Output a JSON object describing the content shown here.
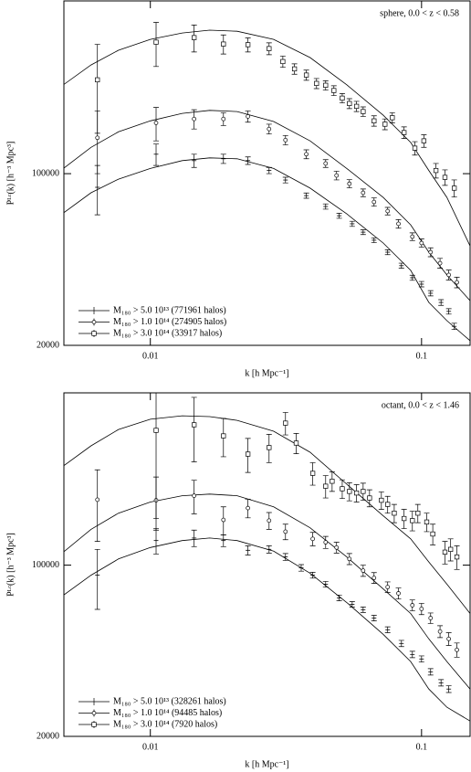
{
  "chart_data": [
    {
      "type": "scatter",
      "annotation": "sphere,  0.0 < z < 0.58",
      "x_label": "k [h Mpc⁻¹]",
      "y_label": "Pᴸᶜ(k) [h⁻³ Mpc³]",
      "log_x": true,
      "log_y": true,
      "xlim": [
        0.0048,
        0.151
      ],
      "ylim": [
        20000,
        505000
      ],
      "xticks": [
        0.01,
        0.1
      ],
      "yticks": [
        20000,
        100000
      ],
      "legend": "lower left",
      "series": [
        {
          "name": "M₁₈₀ > 5.0 10¹³ (771961 halos)",
          "marker": "plus",
          "color": "#000000",
          "x": [
            0.00638,
            0.0105,
            0.0145,
            0.0186,
            0.0229,
            0.0274,
            0.0315,
            0.0376,
            0.0443,
            0.0497,
            0.0555,
            0.0609,
            0.0668,
            0.075,
            0.0843,
            0.0925,
            0.1,
            0.108,
            0.118,
            0.126,
            0.132
          ],
          "values": [
            88000,
            120000,
            113000,
            115000,
            113000,
            103000,
            94200,
            81400,
            73500,
            67400,
            62500,
            57800,
            53600,
            47900,
            42200,
            37700,
            35500,
            32600,
            29900,
            27500,
            23900
          ],
          "errors": [
            20000,
            12000,
            7000,
            5000,
            4000,
            3000,
            2500,
            2000,
            1800,
            1600,
            1500,
            1300,
            1200,
            1100,
            1000,
            900,
            900,
            800,
            800,
            700,
            700
          ]
        },
        {
          "name": "M₁₈₀ > 1.0 10¹⁴ (274905 halos)",
          "marker": "circle",
          "color": "#000000",
          "x": [
            0.00638,
            0.0105,
            0.0145,
            0.0186,
            0.0229,
            0.0274,
            0.0315,
            0.0376,
            0.0443,
            0.0486,
            0.0542,
            0.0609,
            0.0668,
            0.075,
            0.0822,
            0.0925,
            0.1,
            0.108,
            0.117,
            0.126,
            0.135
          ],
          "values": [
            140000,
            161000,
            167000,
            167000,
            171000,
            152000,
            137000,
            120000,
            110000,
            98300,
            91000,
            83600,
            76700,
            70400,
            62500,
            55400,
            52200,
            47900,
            43200,
            38700,
            36100
          ],
          "errors": [
            40000,
            25000,
            15000,
            10000,
            9000,
            7000,
            6000,
            5000,
            4000,
            4000,
            3500,
            3000,
            3000,
            2500,
            2500,
            2000,
            2000,
            2000,
            2000,
            1800,
            1800
          ]
        },
        {
          "name": "M₁₈₀ > 3.0 10¹⁴ (33917 halos)",
          "marker": "square",
          "color": "#000000",
          "x": [
            0.00638,
            0.0105,
            0.0145,
            0.0186,
            0.0229,
            0.0274,
            0.0308,
            0.034,
            0.0376,
            0.041,
            0.0443,
            0.0475,
            0.051,
            0.0542,
            0.0576,
            0.0609,
            0.0668,
            0.0733,
            0.078,
            0.0862,
            0.0945,
            0.102,
            0.113,
            0.122,
            0.132
          ],
          "values": [
            241000,
            343000,
            358000,
            337000,
            335000,
            323000,
            286000,
            267000,
            252000,
            233000,
            229000,
            218000,
            203000,
            193000,
            188000,
            179000,
            164000,
            159000,
            169000,
            147000,
            127000,
            136000,
            103000,
            96600,
            87300
          ],
          "errors": [
            95000,
            70000,
            45000,
            30000,
            22000,
            18000,
            15000,
            13000,
            12000,
            11000,
            10000,
            10000,
            9000,
            9000,
            9000,
            8000,
            8000,
            8000,
            8000,
            8000,
            8000,
            8000,
            7000,
            7000,
            7000
          ]
        }
      ],
      "curve_x": [
        0.00478,
        0.00604,
        0.00763,
        0.01,
        0.0131,
        0.01655,
        0.0209,
        0.0285,
        0.0388,
        0.053,
        0.0722,
        0.0912,
        0.1064,
        0.124,
        0.151
      ],
      "curves": [
        {
          "values": [
            69200,
            83600,
            95000,
            105000,
            113000,
            116000,
            115000,
            105000,
            87300,
            68600,
            52200,
            40400,
            29900,
            25200,
            20900
          ]
        },
        {
          "values": [
            105000,
            128000,
            148000,
            164000,
            176000,
            181000,
            179000,
            163000,
            136000,
            105000,
            80000,
            61900,
            47900,
            38700,
            30400
          ]
        },
        {
          "values": [
            230000,
            277000,
            318000,
            352000,
            374000,
            384000,
            380000,
            352000,
            297000,
            230000,
            173000,
            134000,
            103000,
            80000,
            50800
          ]
        }
      ]
    },
    {
      "type": "scatter",
      "annotation": "octant,  0.0 < z < 1.46",
      "x_label": "k [h Mpc⁻¹]",
      "y_label": "Pᴸᶜ(k) [h⁻³ Mpc³]",
      "log_x": true,
      "log_y": true,
      "xlim": [
        0.0048,
        0.151
      ],
      "ylim": [
        20000,
        505000
      ],
      "xticks": [
        0.01,
        0.1
      ],
      "yticks": [
        20000,
        100000
      ],
      "legend": "lower left",
      "series": [
        {
          "name": "M₁₈₀ > 5.0 10¹³ (328261 halos)",
          "marker": "plus",
          "color": "#000000",
          "x": [
            0.00638,
            0.0105,
            0.0145,
            0.0186,
            0.0229,
            0.0274,
            0.0315,
            0.036,
            0.0397,
            0.0443,
            0.0497,
            0.0555,
            0.0609,
            0.0668,
            0.075,
            0.0843,
            0.0925,
            0.1,
            0.108,
            0.118,
            0.126
          ],
          "values": [
            91000,
            126000,
            129000,
            126000,
            115000,
            116000,
            108000,
            97500,
            91000,
            83600,
            73500,
            69200,
            65800,
            60800,
            54500,
            47900,
            43200,
            41400,
            36700,
            33100,
            31200
          ],
          "errors": [
            25000,
            15000,
            10000,
            7000,
            5000,
            4000,
            3500,
            3000,
            2500,
            2200,
            2000,
            1800,
            1700,
            1600,
            1500,
            1400,
            1300,
            1200,
            1100,
            1000,
            1000
          ]
        },
        {
          "name": "M₁₈₀ > 1.0 10¹⁴ (94485 halos)",
          "marker": "circle",
          "color": "#000000",
          "x": [
            0.00638,
            0.0105,
            0.0145,
            0.0186,
            0.0229,
            0.0274,
            0.0315,
            0.0397,
            0.0443,
            0.0486,
            0.0542,
            0.0609,
            0.0668,
            0.075,
            0.0822,
            0.0925,
            0.1,
            0.108,
            0.117,
            0.126,
            0.135
          ],
          "values": [
            185000,
            184000,
            192000,
            153000,
            171000,
            152000,
            137000,
            128000,
            124000,
            118000,
            106000,
            95000,
            88700,
            81400,
            76700,
            68600,
            66300,
            60800,
            53600,
            50000,
            45100
          ],
          "errors": [
            60000,
            45000,
            30000,
            20000,
            15000,
            12000,
            10000,
            8000,
            7000,
            6000,
            5500,
            5000,
            4500,
            4000,
            4000,
            3500,
            3500,
            3000,
            3000,
            3000,
            3000
          ]
        },
        {
          "name": "M₁₈₀ > 3.0 10¹⁴ (7920 halos)",
          "marker": "square",
          "color": "#000000",
          "x": [
            0.0105,
            0.0145,
            0.0186,
            0.0229,
            0.0274,
            0.0315,
            0.0345,
            0.0397,
            0.0443,
            0.0468,
            0.051,
            0.0542,
            0.0576,
            0.0609,
            0.0643,
            0.0711,
            0.075,
            0.0793,
            0.0862,
            0.0925,
            0.0969,
            0.1045,
            0.11,
            0.122,
            0.128,
            0.135
          ],
          "values": [
            355000,
            374000,
            337000,
            284000,
            302000,
            380000,
            315000,
            237000,
            210000,
            220000,
            205000,
            200000,
            197000,
            200000,
            188000,
            184000,
            177000,
            163000,
            155000,
            152000,
            163000,
            150000,
            134000,
            113000,
            116000,
            108000
          ],
          "errors": [
            200000,
            110000,
            60000,
            45000,
            40000,
            40000,
            30000,
            25000,
            22000,
            20000,
            18000,
            17000,
            16000,
            16000,
            15000,
            15000,
            14000,
            14000,
            14000,
            14000,
            14000,
            13000,
            13000,
            12000,
            12000,
            12000
          ]
        }
      ],
      "curve_x": [
        0.00478,
        0.00604,
        0.00763,
        0.01,
        0.0131,
        0.01655,
        0.0209,
        0.0285,
        0.0388,
        0.053,
        0.0722,
        0.0912,
        0.1064,
        0.124,
        0.151
      ],
      "curves": [
        {
          "values": [
            75400,
            91000,
            106000,
            118000,
            126000,
            129000,
            126000,
            114000,
            92700,
            70400,
            52200,
            40400,
            31200,
            26300,
            23100
          ]
        },
        {
          "values": [
            113000,
            140000,
            163000,
            181000,
            192000,
            195000,
            192000,
            173000,
            142000,
            108000,
            80000,
            63500,
            50000,
            40400,
            31200
          ]
        },
        {
          "values": [
            254000,
            307000,
            358000,
            394000,
            407000,
            404000,
            390000,
            352000,
            289000,
            214000,
            159000,
            128000,
            103000,
            83600,
            63500
          ]
        }
      ]
    }
  ]
}
